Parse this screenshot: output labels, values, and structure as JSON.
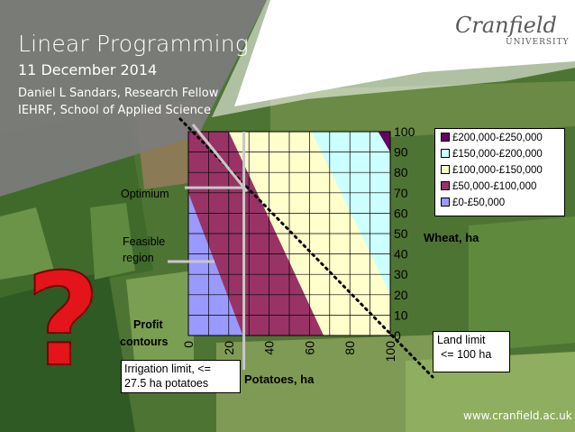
{
  "header": {
    "title": "Linear Programming",
    "date": "11 December 2014",
    "author": "Daniel L Sandars, Research Fellow",
    "department": "IEHRF, School of Applied Science"
  },
  "logo": {
    "name": "Cranfield",
    "sub": "UNIVERSITY"
  },
  "footer": {
    "url": "www.cranfield.ac.uk"
  },
  "annotations": {
    "optimium": "Optimium",
    "feasible_region_line1": "Feasible",
    "feasible_region_line2": "region",
    "profit_contours_line1": "Profit",
    "profit_contours_line2": "contours",
    "land_limit_line1": "Land limit",
    "land_limit_line2": "<= 100 ha",
    "irrigation_line1": "Irrigation limit,  <=",
    "irrigation_line2": "27.5 ha potatoes",
    "question_mark": "?"
  },
  "colors": {
    "band_0_50k": "#9999ff",
    "band_50_100k": "#993366",
    "band_100_150k": "#ffffcc",
    "band_150_200k": "#ccffff",
    "band_200_250k": "#660066"
  },
  "chart_data": {
    "type": "heatmap",
    "xlabel": "Potatoes, ha",
    "ylabel": "Wheat, ha",
    "xlim": [
      0,
      100
    ],
    "ylim": [
      0,
      100
    ],
    "x_ticks": [
      "0",
      "20",
      "40",
      "60",
      "80",
      "100"
    ],
    "y_ticks": [
      "0",
      "10",
      "20",
      "30",
      "40",
      "50",
      "60",
      "70",
      "80",
      "90",
      "100"
    ],
    "grid": true,
    "legend_position": "right",
    "legend": [
      "£200,000-£250,000",
      "£150,000-£200,000",
      "£100,000-£150,000",
      "£50,000-£100,000",
      "£0-£50,000"
    ],
    "profit_bands": [
      {
        "name": "£0-£50,000",
        "upper_boundary": [
          [
            0,
            70
          ],
          [
            27,
            0
          ]
        ]
      },
      {
        "name": "£50,000-£100,000",
        "upper_boundary": [
          [
            20,
            100
          ],
          [
            67,
            0
          ]
        ]
      },
      {
        "name": "£100,000-£150,000",
        "upper_boundary": [
          [
            61,
            100
          ],
          [
            100,
            20
          ]
        ]
      },
      {
        "name": "£150,000-£200,000",
        "upper_boundary": [
          [
            94,
            100
          ],
          [
            100,
            90
          ]
        ]
      },
      {
        "name": "£200,000-£250,000"
      }
    ],
    "constraints": [
      {
        "name": "Land limit",
        "line": [
          [
            0,
            100
          ],
          [
            100,
            0
          ]
        ]
      },
      {
        "name": "Irrigation limit",
        "x": 27.5
      }
    ],
    "optimum": {
      "x": 27.5,
      "y": 72.5
    }
  }
}
